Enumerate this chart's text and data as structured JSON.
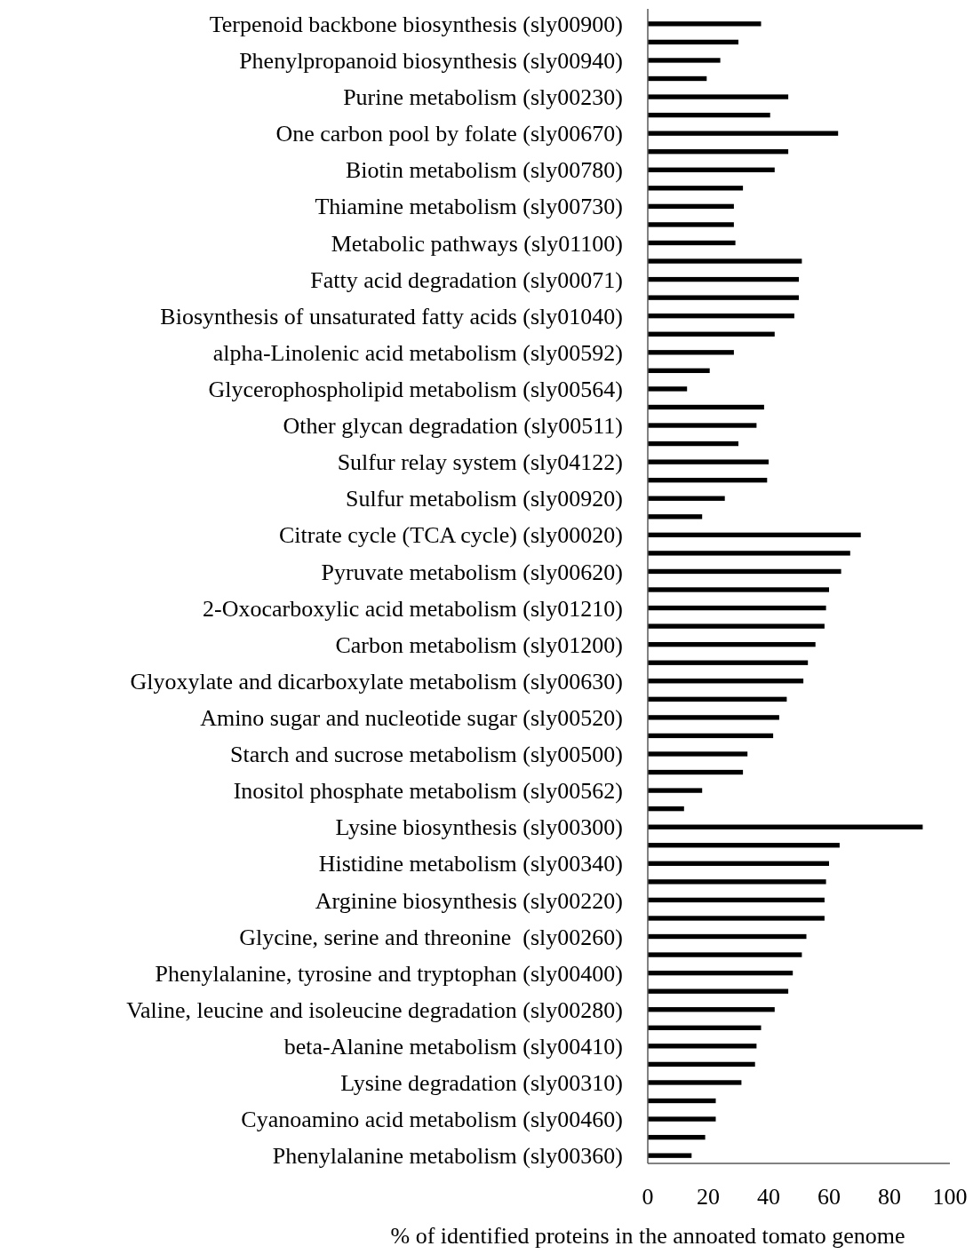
{
  "chart_data": {
    "type": "bar",
    "orientation": "horizontal",
    "xlabel": "% of identified proteins in the annoated tomato genome",
    "categories": [
      "Terpenoid backbone biosynthesis (sly00900)",
      null,
      "Phenylpropanoid biosynthesis (sly00940)",
      null,
      "Purine metabolism (sly00230)",
      null,
      "One carbon pool by folate (sly00670)",
      null,
      "Biotin metabolism (sly00780)",
      null,
      "Thiamine metabolism (sly00730)",
      null,
      "Metabolic pathways (sly01100)",
      null,
      "Fatty acid degradation (sly00071)",
      null,
      "Biosynthesis of unsaturated fatty acids (sly01040)",
      null,
      "alpha-Linolenic acid metabolism (sly00592)",
      null,
      "Glycerophospholipid metabolism (sly00564)",
      null,
      "Other glycan degradation (sly00511)",
      null,
      "Sulfur relay system (sly04122)",
      null,
      "Sulfur metabolism (sly00920)",
      null,
      "Citrate cycle (TCA cycle) (sly00020)",
      null,
      "Pyruvate metabolism (sly00620)",
      null,
      "2-Oxocarboxylic acid metabolism (sly01210)",
      null,
      "Carbon metabolism (sly01200)",
      null,
      "Glyoxylate and dicarboxylate metabolism (sly00630)",
      null,
      "Amino sugar and nucleotide sugar (sly00520)",
      null,
      "Starch and sucrose metabolism (sly00500)",
      null,
      "Inositol phosphate metabolism (sly00562)",
      null,
      "Lysine biosynthesis (sly00300)",
      null,
      "Histidine metabolism (sly00340)",
      null,
      "Arginine biosynthesis (sly00220)",
      null,
      "Glycine, serine and threonine  (sly00260)",
      null,
      "Phenylalanine, tyrosine and tryptophan (sly00400)",
      null,
      "Valine, leucine and isoleucine degradation (sly00280)",
      null,
      "beta-Alanine metabolism (sly00410)",
      null,
      "Lysine degradation (sly00310)",
      null,
      "Cyanoamino acid metabolism (sly00460)",
      null,
      "Phenylalanine metabolism (sly00360)"
    ],
    "values": [
      37.5,
      30,
      24,
      19.5,
      46.5,
      40.5,
      63,
      46.5,
      42,
      31.5,
      28.5,
      28.5,
      29,
      51,
      50,
      50,
      48.5,
      42,
      28.5,
      20.5,
      13,
      38.5,
      36,
      30,
      40,
      39.5,
      25.5,
      18,
      70.5,
      67,
      64,
      60,
      59,
      58.5,
      55.5,
      53,
      51.5,
      46,
      43.5,
      41.5,
      33,
      31.5,
      18,
      12,
      91,
      63.5,
      60,
      59,
      58.5,
      58.5,
      52.5,
      51,
      48,
      46.5,
      42,
      37.5,
      36,
      35.5,
      31,
      22.5,
      22.5,
      19,
      14.5
    ],
    "color": "#000000",
    "xlim": [
      0,
      100
    ],
    "xticks": [
      0,
      20,
      40,
      60,
      80,
      100
    ],
    "grid": false
  }
}
